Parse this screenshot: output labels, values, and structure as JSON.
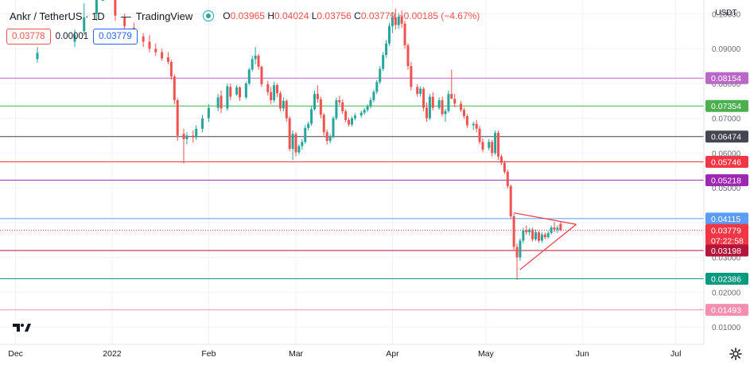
{
  "header": {
    "symbol": "Ankr / TetherUS · 1D",
    "provider": "TradingView",
    "open_label": "O",
    "open": "0.03965",
    "high_label": "H",
    "high": "0.04024",
    "low_label": "L",
    "low": "0.03756",
    "close_label": "C",
    "close": "0.03779",
    "change": "−0.00185 (−4.67%)",
    "sell_price": "0.03778",
    "spread": "0.00001",
    "buy_price": "0.03779"
  },
  "axis": {
    "currency": "USDT",
    "y_ticks": [
      "0.10000",
      "0.09000",
      "0.08000",
      "0.07000",
      "0.06000",
      "0.05000",
      "0.04000",
      "0.03000",
      "0.02000",
      "0.01000"
    ],
    "x_ticks": [
      "Dec",
      "2022",
      "Feb",
      "Mar",
      "Apr",
      "May",
      "Jun",
      "Jul"
    ],
    "countdown": "07:22:58"
  },
  "colors": {
    "up": "#26a69a",
    "down": "#ef5350",
    "background": "#ffffff",
    "grid": "#f0f3fa"
  },
  "chart_data": {
    "type": "candlestick",
    "title": "Ankr / TetherUS · 1D",
    "ylim": [
      0.005,
      0.104
    ],
    "xlim": [
      "2021-11-26",
      "2022-07-10"
    ],
    "y_ticks": [
      0.1,
      0.09,
      0.08,
      0.07,
      0.06,
      0.05,
      0.04,
      0.03,
      0.02,
      0.01
    ],
    "x_tick_dates": [
      "2021-12-01",
      "2022-01-01",
      "2022-02-01",
      "2022-03-01",
      "2022-04-01",
      "2022-05-01",
      "2022-06-01",
      "2022-07-01"
    ],
    "horizontal_levels": [
      {
        "value": 0.08154,
        "label": "0.08154",
        "color": "#ba68c8"
      },
      {
        "value": 0.07354,
        "label": "0.07354",
        "color": "#4caf50"
      },
      {
        "value": 0.06474,
        "label": "0.06474",
        "color": "#434651"
      },
      {
        "value": 0.05746,
        "label": "0.05746",
        "color": "#f23645"
      },
      {
        "value": 0.05218,
        "label": "0.05218",
        "color": "#9c27b0"
      },
      {
        "value": 0.04115,
        "label": "0.04115",
        "color": "#5b9cf6"
      },
      {
        "value": 0.03779,
        "label": "0.03779",
        "color": "#f23645",
        "style": "dotted"
      },
      {
        "value": 0.03198,
        "label": "0.03198",
        "color": "#b2173b"
      },
      {
        "value": 0.02386,
        "label": "0.02386",
        "color": "#089981"
      },
      {
        "value": 0.01493,
        "label": "0.01493",
        "color": "#f48fb1"
      }
    ],
    "triangle": {
      "upper": [
        [
          "2022-05-10",
          0.0428
        ],
        [
          "2022-05-30",
          0.0395
        ]
      ],
      "lower": [
        [
          "2022-05-12",
          0.0265
        ],
        [
          "2022-05-30",
          0.0395
        ]
      ],
      "color": "#f23645"
    },
    "candles": [
      [
        "2021-12-08",
        0.087,
        0.0905,
        0.086,
        0.0888
      ],
      [
        "2021-12-20",
        0.092,
        0.0955,
        0.0905,
        0.094
      ],
      [
        "2021-12-23",
        0.095,
        0.103,
        0.0938,
        0.099
      ],
      [
        "2021-12-27",
        0.1,
        0.106,
        0.098,
        0.104
      ],
      [
        "2021-12-29",
        0.106,
        0.115,
        0.104,
        0.112
      ],
      [
        "2022-01-02",
        0.1055,
        0.1075,
        0.098,
        0.0995
      ],
      [
        "2022-01-05",
        0.099,
        0.1,
        0.095,
        0.0965
      ],
      [
        "2022-01-08",
        0.096,
        0.0975,
        0.092,
        0.0935
      ],
      [
        "2022-01-11",
        0.0935,
        0.0945,
        0.0905,
        0.092
      ],
      [
        "2022-01-13",
        0.092,
        0.094,
        0.089,
        0.09
      ],
      [
        "2022-01-15",
        0.09,
        0.0915,
        0.088,
        0.089
      ],
      [
        "2022-01-17",
        0.089,
        0.09,
        0.0865,
        0.0872
      ],
      [
        "2022-01-19",
        0.0875,
        0.089,
        0.0855,
        0.0862
      ],
      [
        "2022-01-20",
        0.0862,
        0.0868,
        0.081,
        0.082
      ],
      [
        "2022-01-21",
        0.082,
        0.0826,
        0.074,
        0.0752
      ],
      [
        "2022-01-22",
        0.0752,
        0.0758,
        0.0635,
        0.065
      ],
      [
        "2022-01-24",
        0.0655,
        0.067,
        0.057,
        0.064
      ],
      [
        "2022-01-25",
        0.064,
        0.066,
        0.0625,
        0.065
      ],
      [
        "2022-01-27",
        0.065,
        0.0665,
        0.063,
        0.0645
      ],
      [
        "2022-01-28",
        0.0645,
        0.068,
        0.0638,
        0.067
      ],
      [
        "2022-01-30",
        0.067,
        0.071,
        0.066,
        0.07
      ],
      [
        "2022-02-01",
        0.07,
        0.074,
        0.069,
        0.073
      ],
      [
        "2022-02-04",
        0.073,
        0.077,
        0.072,
        0.076
      ],
      [
        "2022-02-05",
        0.0765,
        0.078,
        0.0715,
        0.0728
      ],
      [
        "2022-02-07",
        0.0728,
        0.08,
        0.0722,
        0.0792
      ],
      [
        "2022-02-08",
        0.079,
        0.08,
        0.0752,
        0.0762
      ],
      [
        "2022-02-10",
        0.0768,
        0.0795,
        0.0765,
        0.0789
      ],
      [
        "2022-02-11",
        0.0789,
        0.0792,
        0.075,
        0.076
      ],
      [
        "2022-02-13",
        0.076,
        0.0805,
        0.0755,
        0.08
      ],
      [
        "2022-02-14",
        0.08,
        0.0845,
        0.0795,
        0.084
      ],
      [
        "2022-02-15",
        0.084,
        0.088,
        0.0835,
        0.087
      ],
      [
        "2022-02-16",
        0.087,
        0.0905,
        0.0855,
        0.088
      ],
      [
        "2022-02-17",
        0.088,
        0.0885,
        0.084,
        0.0848
      ],
      [
        "2022-02-18",
        0.0848,
        0.0852,
        0.079,
        0.0798
      ],
      [
        "2022-02-20",
        0.0798,
        0.0808,
        0.0765,
        0.0775
      ],
      [
        "2022-02-21",
        0.0775,
        0.079,
        0.074,
        0.0752
      ],
      [
        "2022-02-22",
        0.0752,
        0.0805,
        0.0745,
        0.0795
      ],
      [
        "2022-02-23",
        0.0795,
        0.08,
        0.076,
        0.0772
      ],
      [
        "2022-02-24",
        0.0772,
        0.0778,
        0.072,
        0.0728
      ],
      [
        "2022-02-25",
        0.0728,
        0.076,
        0.072,
        0.075
      ],
      [
        "2022-02-26",
        0.075,
        0.0755,
        0.069,
        0.07
      ],
      [
        "2022-02-27",
        0.07,
        0.0706,
        0.0605,
        0.0612
      ],
      [
        "2022-02-28",
        0.0612,
        0.0665,
        0.058,
        0.0655
      ],
      [
        "2022-03-01",
        0.0655,
        0.066,
        0.059,
        0.0602
      ],
      [
        "2022-03-02",
        0.0602,
        0.0625,
        0.0595,
        0.062
      ],
      [
        "2022-03-03",
        0.062,
        0.064,
        0.061,
        0.0632
      ],
      [
        "2022-03-04",
        0.0632,
        0.068,
        0.0626,
        0.0672
      ],
      [
        "2022-03-05",
        0.0672,
        0.069,
        0.0665,
        0.0684
      ],
      [
        "2022-03-06",
        0.0684,
        0.0735,
        0.0678,
        0.0726
      ],
      [
        "2022-03-07",
        0.0726,
        0.078,
        0.0722,
        0.077
      ],
      [
        "2022-03-08",
        0.077,
        0.0795,
        0.0745,
        0.0755
      ],
      [
        "2022-03-09",
        0.0755,
        0.0762,
        0.07,
        0.071
      ],
      [
        "2022-03-10",
        0.071,
        0.0715,
        0.065,
        0.066
      ],
      [
        "2022-03-11",
        0.066,
        0.0668,
        0.0625,
        0.0635
      ],
      [
        "2022-03-12",
        0.0635,
        0.0655,
        0.0628,
        0.0648
      ],
      [
        "2022-03-13",
        0.0648,
        0.0706,
        0.0642,
        0.07
      ],
      [
        "2022-03-14",
        0.07,
        0.076,
        0.0694,
        0.0752
      ],
      [
        "2022-03-15",
        0.0752,
        0.0765,
        0.0738,
        0.0746
      ],
      [
        "2022-03-16",
        0.0746,
        0.0755,
        0.0712,
        0.072
      ],
      [
        "2022-03-17",
        0.072,
        0.0726,
        0.0688,
        0.0695
      ],
      [
        "2022-03-18",
        0.0695,
        0.0702,
        0.0676,
        0.0682
      ],
      [
        "2022-03-19",
        0.0682,
        0.0705,
        0.0676,
        0.07
      ],
      [
        "2022-03-20",
        0.07,
        0.0715,
        0.0694,
        0.0708
      ],
      [
        "2022-03-22",
        0.0708,
        0.0722,
        0.0702,
        0.0716
      ],
      [
        "2022-03-23",
        0.0716,
        0.073,
        0.071,
        0.0724
      ],
      [
        "2022-03-24",
        0.0724,
        0.074,
        0.0718,
        0.0734
      ],
      [
        "2022-03-25",
        0.0734,
        0.076,
        0.0728,
        0.0752
      ],
      [
        "2022-03-26",
        0.0752,
        0.0782,
        0.0746,
        0.0776
      ],
      [
        "2022-03-27",
        0.0776,
        0.081,
        0.077,
        0.0804
      ],
      [
        "2022-03-28",
        0.0804,
        0.085,
        0.0798,
        0.0842
      ],
      [
        "2022-03-29",
        0.0842,
        0.089,
        0.0836,
        0.0882
      ],
      [
        "2022-03-30",
        0.0882,
        0.0925,
        0.0874,
        0.0915
      ],
      [
        "2022-03-31",
        0.0915,
        0.0975,
        0.0908,
        0.0965
      ],
      [
        "2022-04-01",
        0.0965,
        0.1005,
        0.0945,
        0.099
      ],
      [
        "2022-04-02",
        0.099,
        0.1015,
        0.0955,
        0.0968
      ],
      [
        "2022-04-03",
        0.0968,
        0.1002,
        0.0958,
        0.0992
      ],
      [
        "2022-04-04",
        0.0992,
        0.101,
        0.096,
        0.0972
      ],
      [
        "2022-04-05",
        0.0972,
        0.098,
        0.09,
        0.091
      ],
      [
        "2022-04-06",
        0.091,
        0.0916,
        0.084,
        0.085
      ],
      [
        "2022-04-07",
        0.085,
        0.0862,
        0.078,
        0.079
      ],
      [
        "2022-04-09",
        0.079,
        0.0798,
        0.0762,
        0.077
      ],
      [
        "2022-04-10",
        0.077,
        0.0792,
        0.0762,
        0.0785
      ],
      [
        "2022-04-11",
        0.0785,
        0.079,
        0.072,
        0.073
      ],
      [
        "2022-04-12",
        0.073,
        0.0745,
        0.069,
        0.07
      ],
      [
        "2022-04-13",
        0.07,
        0.077,
        0.0694,
        0.0762
      ],
      [
        "2022-04-14",
        0.0762,
        0.0775,
        0.0722,
        0.073
      ],
      [
        "2022-04-16",
        0.073,
        0.076,
        0.0724,
        0.0752
      ],
      [
        "2022-04-17",
        0.0752,
        0.0762,
        0.0705,
        0.0712
      ],
      [
        "2022-04-18",
        0.0712,
        0.0728,
        0.069,
        0.0721
      ],
      [
        "2022-04-19",
        0.0721,
        0.078,
        0.0716,
        0.077
      ],
      [
        "2022-04-20",
        0.077,
        0.084,
        0.0762,
        0.0756
      ],
      [
        "2022-04-21",
        0.0756,
        0.077,
        0.0732,
        0.0742
      ],
      [
        "2022-04-23",
        0.0742,
        0.075,
        0.0718,
        0.0724
      ],
      [
        "2022-04-24",
        0.0724,
        0.073,
        0.0698,
        0.0706
      ],
      [
        "2022-04-25",
        0.0706,
        0.0712,
        0.0672,
        0.068
      ],
      [
        "2022-04-27",
        0.068,
        0.069,
        0.0666,
        0.0684
      ],
      [
        "2022-04-28",
        0.0684,
        0.0695,
        0.066,
        0.067
      ],
      [
        "2022-04-29",
        0.067,
        0.0678,
        0.0625,
        0.0632
      ],
      [
        "2022-04-30",
        0.0632,
        0.0642,
        0.0602,
        0.061
      ],
      [
        "2022-05-02",
        0.0615,
        0.064,
        0.0608,
        0.0632
      ],
      [
        "2022-05-03",
        0.0632,
        0.0638,
        0.059,
        0.06
      ],
      [
        "2022-05-04",
        0.06,
        0.0665,
        0.0594,
        0.0658
      ],
      [
        "2022-05-05",
        0.0658,
        0.0664,
        0.058,
        0.059
      ],
      [
        "2022-05-06",
        0.059,
        0.0596,
        0.0565,
        0.0572
      ],
      [
        "2022-05-07",
        0.0572,
        0.0578,
        0.054,
        0.0546
      ],
      [
        "2022-05-08",
        0.0546,
        0.0552,
        0.0498,
        0.0505
      ],
      [
        "2022-05-09",
        0.0505,
        0.051,
        0.041,
        0.0418
      ],
      [
        "2022-05-10",
        0.0418,
        0.0425,
        0.0318,
        0.033
      ],
      [
        "2022-05-11",
        0.033,
        0.034,
        0.0235,
        0.03
      ],
      [
        "2022-05-12",
        0.03,
        0.0355,
        0.029,
        0.0348
      ],
      [
        "2022-05-13",
        0.0348,
        0.0385,
        0.034,
        0.0378
      ],
      [
        "2022-05-14",
        0.0378,
        0.0392,
        0.0365,
        0.0372
      ],
      [
        "2022-05-15",
        0.0372,
        0.0385,
        0.0362,
        0.038
      ],
      [
        "2022-05-16",
        0.038,
        0.0386,
        0.0345,
        0.0352
      ],
      [
        "2022-05-17",
        0.0352,
        0.038,
        0.0348,
        0.0372
      ],
      [
        "2022-05-18",
        0.0372,
        0.0376,
        0.0342,
        0.0348
      ],
      [
        "2022-05-19",
        0.0348,
        0.0372,
        0.0342,
        0.0366
      ],
      [
        "2022-05-20",
        0.0366,
        0.0372,
        0.0352,
        0.0358
      ],
      [
        "2022-05-21",
        0.0358,
        0.0376,
        0.0354,
        0.037
      ],
      [
        "2022-05-22",
        0.037,
        0.0392,
        0.0366,
        0.0386
      ],
      [
        "2022-05-23",
        0.0386,
        0.0402,
        0.0372,
        0.038
      ],
      [
        "2022-05-24",
        0.038,
        0.0392,
        0.037,
        0.0385
      ],
      [
        "2022-05-25",
        0.03965,
        0.04024,
        0.03756,
        0.03779
      ]
    ]
  }
}
